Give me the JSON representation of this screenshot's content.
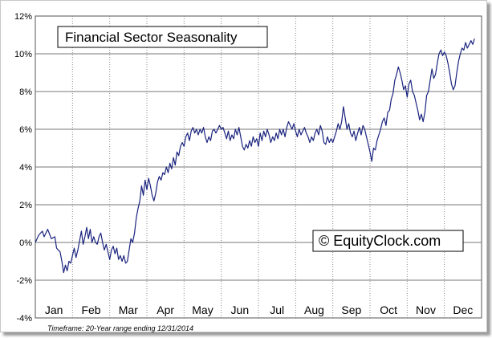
{
  "chart_data": {
    "type": "line",
    "title": "Financial Sector Seasonality",
    "watermark": "© EquityClock.com",
    "footnote": "Timeframe: 20-Year range ending 12/31/2014",
    "xlabel": "",
    "ylabel": "",
    "ylim": [
      -4,
      12
    ],
    "yticks": [
      -4,
      -2,
      0,
      2,
      4,
      6,
      8,
      10,
      12
    ],
    "ytick_labels": [
      "-4%",
      "-2%",
      "0%",
      "2%",
      "4%",
      "6%",
      "8%",
      "10%",
      "12%"
    ],
    "months": [
      "Jan",
      "Feb",
      "Mar",
      "Apr",
      "May",
      "Jun",
      "Jul",
      "Aug",
      "Sep",
      "Oct",
      "Nov",
      "Dec"
    ],
    "x_unit": "trading day of year",
    "x_range": [
      0,
      252
    ],
    "grid": "horizontal solid, vertical dotted at month boundaries",
    "line_color": "#1a237e",
    "series": [
      {
        "points": [
          [
            0,
            0
          ],
          [
            2,
            0.4
          ],
          [
            4,
            0.6
          ],
          [
            5,
            0.3
          ],
          [
            7,
            0.7
          ],
          [
            9,
            0.2
          ],
          [
            11,
            0.3
          ],
          [
            12,
            -0.3
          ],
          [
            14,
            -0.5
          ],
          [
            15,
            -1.0
          ],
          [
            16,
            -1.6
          ],
          [
            17,
            -1.2
          ],
          [
            18,
            -1.5
          ],
          [
            19,
            -1.0
          ],
          [
            20,
            -1.1
          ],
          [
            21,
            -0.7
          ],
          [
            22,
            -0.3
          ],
          [
            23,
            -0.8
          ],
          [
            24,
            -0.4
          ],
          [
            25,
            0.1
          ],
          [
            26,
            0.6
          ],
          [
            27,
            -0.1
          ],
          [
            28,
            0.3
          ],
          [
            29,
            0.8
          ],
          [
            30,
            0.2
          ],
          [
            31,
            0.7
          ],
          [
            32,
            0.0
          ],
          [
            33,
            0.3
          ],
          [
            34,
            0.0
          ],
          [
            35,
            -0.1
          ],
          [
            36,
            0.3
          ],
          [
            37,
            0.5
          ],
          [
            38,
            0.0
          ],
          [
            39,
            -0.4
          ],
          [
            40,
            -0.1
          ],
          [
            41,
            -0.5
          ],
          [
            42,
            -0.9
          ],
          [
            43,
            -0.4
          ],
          [
            44,
            -0.2
          ],
          [
            45,
            -0.6
          ],
          [
            46,
            -0.3
          ],
          [
            47,
            -0.9
          ],
          [
            48,
            -0.7
          ],
          [
            49,
            -1.0
          ],
          [
            50,
            -0.7
          ],
          [
            51,
            -1.1
          ],
          [
            52,
            -1.0
          ],
          [
            53,
            -0.4
          ],
          [
            54,
            0.2
          ],
          [
            55,
            0.0
          ],
          [
            56,
            0.5
          ],
          [
            57,
            1.3
          ],
          [
            58,
            1.8
          ],
          [
            59,
            2.2
          ],
          [
            60,
            3.0
          ],
          [
            61,
            2.5
          ],
          [
            62,
            3.3
          ],
          [
            63,
            2.8
          ],
          [
            64,
            3.4
          ],
          [
            65,
            3.0
          ],
          [
            66,
            2.5
          ],
          [
            67,
            2.2
          ],
          [
            68,
            2.6
          ],
          [
            69,
            3.2
          ],
          [
            70,
            3.5
          ],
          [
            71,
            3.3
          ],
          [
            72,
            3.7
          ],
          [
            73,
            3.6
          ],
          [
            74,
            4.0
          ],
          [
            75,
            3.7
          ],
          [
            76,
            4.2
          ],
          [
            77,
            3.9
          ],
          [
            78,
            4.5
          ],
          [
            79,
            4.1
          ],
          [
            80,
            4.8
          ],
          [
            81,
            4.6
          ],
          [
            82,
            5.1
          ],
          [
            83,
            5.3
          ],
          [
            84,
            5.1
          ],
          [
            85,
            5.6
          ],
          [
            86,
            5.8
          ],
          [
            87,
            5.4
          ],
          [
            88,
            5.9
          ],
          [
            89,
            6.1
          ],
          [
            90,
            5.8
          ],
          [
            91,
            6.0
          ],
          [
            92,
            5.7
          ],
          [
            93,
            6.0
          ],
          [
            94,
            5.8
          ],
          [
            95,
            6.1
          ],
          [
            96,
            5.6
          ],
          [
            97,
            5.3
          ],
          [
            98,
            5.6
          ],
          [
            99,
            5.4
          ],
          [
            100,
            5.9
          ],
          [
            101,
            6.0
          ],
          [
            102,
            5.8
          ],
          [
            103,
            6.0
          ],
          [
            104,
            6.2
          ],
          [
            105,
            6.0
          ],
          [
            106,
            6.1
          ],
          [
            107,
            5.8
          ],
          [
            108,
            5.5
          ],
          [
            109,
            5.9
          ],
          [
            110,
            5.4
          ],
          [
            111,
            5.7
          ],
          [
            112,
            5.5
          ],
          [
            113,
            6.0
          ],
          [
            114,
            5.7
          ],
          [
            115,
            6.1
          ],
          [
            116,
            5.6
          ],
          [
            117,
            5.1
          ],
          [
            118,
            4.9
          ],
          [
            119,
            5.2
          ],
          [
            120,
            5.0
          ],
          [
            121,
            5.4
          ],
          [
            122,
            5.1
          ],
          [
            123,
            5.6
          ],
          [
            124,
            5.3
          ],
          [
            125,
            5.5
          ],
          [
            126,
            5.1
          ],
          [
            127,
            5.8
          ],
          [
            128,
            5.4
          ],
          [
            129,
            5.9
          ],
          [
            130,
            5.6
          ],
          [
            131,
            6.0
          ],
          [
            132,
            5.7
          ],
          [
            133,
            5.3
          ],
          [
            134,
            5.6
          ],
          [
            135,
            5.4
          ],
          [
            136,
            5.8
          ],
          [
            137,
            5.5
          ],
          [
            138,
            6.0
          ],
          [
            139,
            5.7
          ],
          [
            140,
            6.0
          ],
          [
            141,
            5.6
          ],
          [
            142,
            6.1
          ],
          [
            143,
            6.4
          ],
          [
            144,
            6.2
          ],
          [
            145,
            6.0
          ],
          [
            146,
            6.3
          ],
          [
            147,
            5.9
          ],
          [
            148,
            5.6
          ],
          [
            149,
            6.0
          ],
          [
            150,
            5.7
          ],
          [
            151,
            5.9
          ],
          [
            152,
            6.1
          ],
          [
            153,
            5.8
          ],
          [
            154,
            5.6
          ],
          [
            155,
            5.3
          ],
          [
            156,
            5.6
          ],
          [
            157,
            5.4
          ],
          [
            158,
            5.8
          ],
          [
            159,
            6.0
          ],
          [
            160,
            5.7
          ],
          [
            161,
            6.2
          ],
          [
            162,
            5.9
          ],
          [
            163,
            5.3
          ],
          [
            164,
            5.2
          ],
          [
            165,
            5.6
          ],
          [
            166,
            5.3
          ],
          [
            167,
            5.5
          ],
          [
            168,
            5.3
          ],
          [
            169,
            5.6
          ],
          [
            170,
            5.9
          ],
          [
            171,
            6.3
          ],
          [
            172,
            6.0
          ],
          [
            173,
            6.4
          ],
          [
            174,
            7.2
          ],
          [
            175,
            6.6
          ],
          [
            176,
            6.0
          ],
          [
            177,
            6.3
          ],
          [
            178,
            5.8
          ],
          [
            179,
            5.6
          ],
          [
            180,
            5.9
          ],
          [
            181,
            5.4
          ],
          [
            182,
            5.8
          ],
          [
            183,
            6.1
          ],
          [
            184,
            5.7
          ],
          [
            185,
            6.2
          ],
          [
            186,
            6.0
          ],
          [
            187,
            5.6
          ],
          [
            188,
            5.2
          ],
          [
            189,
            4.8
          ],
          [
            190,
            4.3
          ],
          [
            191,
            5.0
          ],
          [
            192,
            4.9
          ],
          [
            193,
            5.4
          ],
          [
            194,
            5.7
          ],
          [
            195,
            6.0
          ],
          [
            196,
            6.4
          ],
          [
            197,
            6.6
          ],
          [
            198,
            6.2
          ],
          [
            199,
            6.9
          ],
          [
            200,
            7.0
          ],
          [
            201,
            7.6
          ],
          [
            202,
            7.9
          ],
          [
            203,
            8.6
          ],
          [
            204,
            8.9
          ],
          [
            205,
            9.3
          ],
          [
            206,
            9.0
          ],
          [
            207,
            8.6
          ],
          [
            208,
            8.1
          ],
          [
            209,
            8.3
          ],
          [
            210,
            7.7
          ],
          [
            211,
            8.4
          ],
          [
            212,
            8.6
          ],
          [
            213,
            8.0
          ],
          [
            214,
            7.8
          ],
          [
            215,
            7.4
          ],
          [
            216,
            7.0
          ],
          [
            217,
            6.5
          ],
          [
            218,
            6.8
          ],
          [
            219,
            6.4
          ],
          [
            220,
            6.9
          ],
          [
            221,
            7.8
          ],
          [
            222,
            8.0
          ],
          [
            223,
            8.6
          ],
          [
            224,
            9.2
          ],
          [
            225,
            8.7
          ],
          [
            226,
            8.9
          ],
          [
            227,
            9.5
          ],
          [
            228,
            10.0
          ],
          [
            229,
            10.2
          ],
          [
            230,
            9.9
          ],
          [
            231,
            10.1
          ],
          [
            232,
            9.9
          ],
          [
            233,
            9.5
          ],
          [
            234,
            9.0
          ],
          [
            235,
            8.4
          ],
          [
            236,
            8.1
          ],
          [
            237,
            8.3
          ],
          [
            238,
            9.0
          ],
          [
            239,
            9.6
          ],
          [
            240,
            10.0
          ],
          [
            241,
            10.3
          ],
          [
            242,
            10.2
          ],
          [
            243,
            10.6
          ],
          [
            244,
            10.3
          ],
          [
            245,
            10.5
          ],
          [
            246,
            10.7
          ],
          [
            247,
            10.5
          ],
          [
            248,
            10.8
          ]
        ]
      }
    ]
  }
}
